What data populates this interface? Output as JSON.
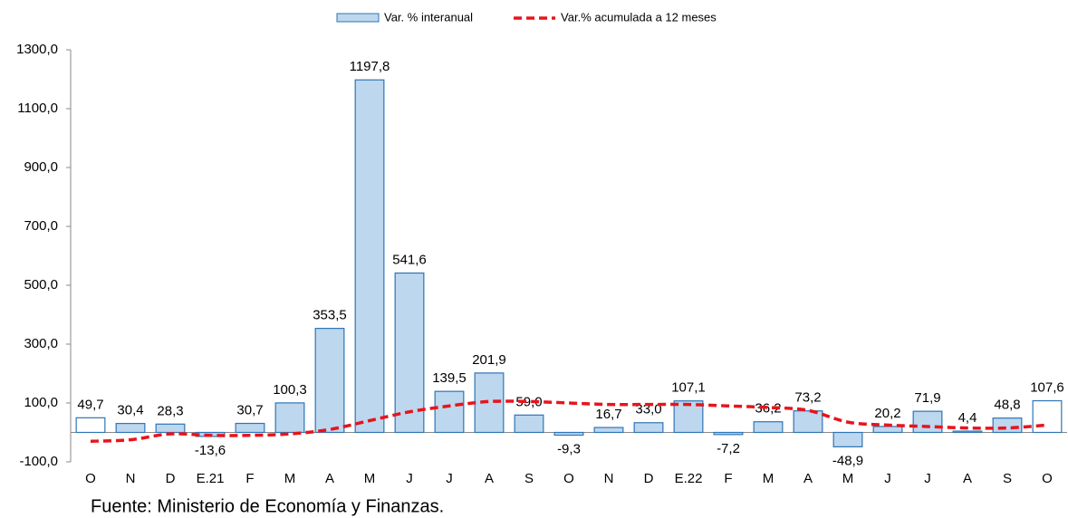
{
  "chart_data": {
    "type": "bar",
    "categories": [
      "O",
      "N",
      "D",
      "E.21",
      "F",
      "M",
      "A",
      "M",
      "J",
      "J",
      "A",
      "S",
      "O",
      "N",
      "D",
      "E.22",
      "F",
      "M",
      "A",
      "M",
      "J",
      "J",
      "A",
      "S",
      "O"
    ],
    "series": [
      {
        "name": "Var. % interanual",
        "type": "bar",
        "color": "#bdd7ee",
        "edge_color": "#2e75b6",
        "colors": [
          "#ffffff",
          "#bdd7ee",
          "#bdd7ee",
          "#bdd7ee",
          "#bdd7ee",
          "#bdd7ee",
          "#bdd7ee",
          "#bdd7ee",
          "#bdd7ee",
          "#bdd7ee",
          "#bdd7ee",
          "#bdd7ee",
          "#bdd7ee",
          "#bdd7ee",
          "#bdd7ee",
          "#bdd7ee",
          "#bdd7ee",
          "#bdd7ee",
          "#bdd7ee",
          "#bdd7ee",
          "#bdd7ee",
          "#bdd7ee",
          "#bdd7ee",
          "#bdd7ee",
          "#ffffff"
        ],
        "values": [
          49.7,
          30.4,
          28.3,
          -13.6,
          30.7,
          100.3,
          353.5,
          1197.8,
          541.6,
          139.5,
          201.9,
          59.0,
          -9.3,
          16.7,
          33.0,
          107.1,
          -7.2,
          36.2,
          73.2,
          -48.9,
          20.2,
          71.9,
          4.4,
          48.8,
          107.6
        ],
        "value_labels": [
          "49,7",
          "30,4",
          "28,3",
          "-13,6",
          "30,7",
          "100,3",
          "353,5",
          "1197,8",
          "541,6",
          "139,5",
          "201,9",
          "59,0",
          "-9,3",
          "16,7",
          "33,0",
          "107,1",
          "-7,2",
          "36,2",
          "73,2",
          "-48,9",
          "20,2",
          "71,9",
          "4,4",
          "48,8",
          "107,6"
        ]
      },
      {
        "name": "Var.% acumulada a 12 meses",
        "type": "line",
        "color": "#e8141c",
        "dashed": true,
        "values": [
          -30,
          -25,
          -5,
          -10,
          -10,
          -5,
          10,
          40,
          70,
          90,
          105,
          105,
          100,
          95,
          95,
          95,
          90,
          85,
          75,
          35,
          25,
          20,
          15,
          15,
          25
        ]
      }
    ],
    "ylim": [
      -100,
      1300
    ],
    "yticks": [
      {
        "value": -100,
        "label": "-100,0"
      },
      {
        "value": 100,
        "label": "100,0"
      },
      {
        "value": 300,
        "label": "300,0"
      },
      {
        "value": 500,
        "label": "500,0"
      },
      {
        "value": 700,
        "label": "700,0"
      },
      {
        "value": 900,
        "label": "900,0"
      },
      {
        "value": 1100,
        "label": "1100,0"
      },
      {
        "value": 1300,
        "label": "1300,0"
      }
    ],
    "grid": false,
    "legend": "top",
    "source": "Fuente: Ministerio de Economía y Finanzas."
  }
}
